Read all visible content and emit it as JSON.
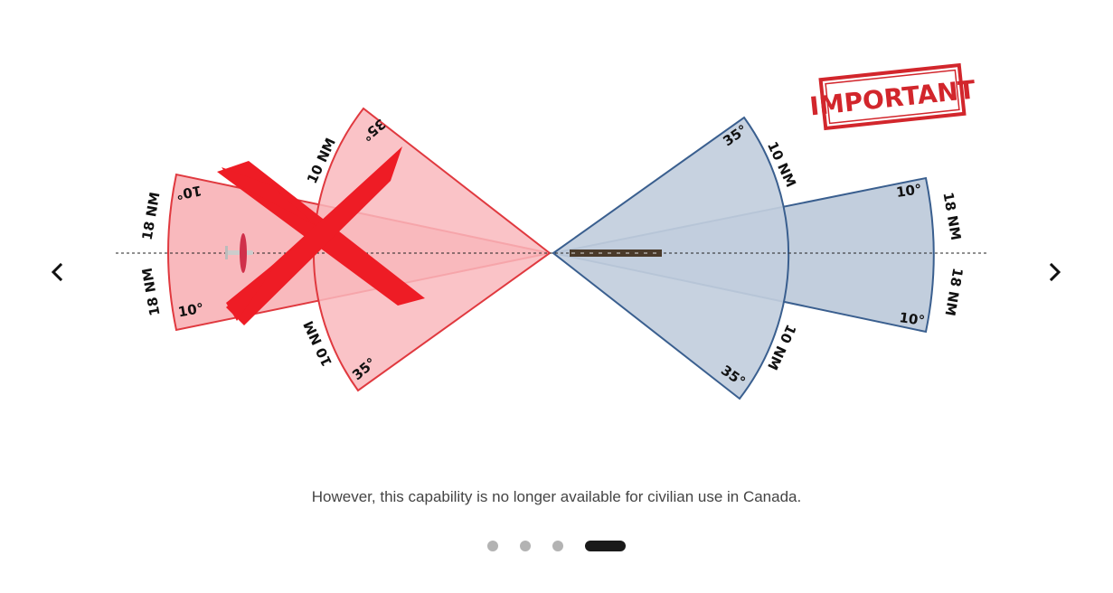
{
  "slide": {
    "stamp_text": "IMPORTANT",
    "labels": {
      "red_outer_top_range": "18 NM",
      "red_outer_bottom_range": "18 NM",
      "red_inner_top_range": "10 NM",
      "red_inner_bottom_range": "10 NM",
      "red_outer_top_angle": "10°",
      "red_outer_bottom_angle": "10°",
      "red_inner_top_angle": "35°",
      "red_inner_bottom_angle": "35°",
      "blue_inner_top_range": "10 NM",
      "blue_inner_bottom_range": "10 NM",
      "blue_outer_top_range": "18 NM",
      "blue_outer_bottom_range": "18 NM",
      "blue_inner_top_angle": "35°",
      "blue_inner_bottom_angle": "35°",
      "blue_outer_top_angle": "10°",
      "blue_outer_bottom_angle": "10°"
    },
    "colors": {
      "red_fill": "#f9b9bd",
      "red_stroke": "#e0393f",
      "blue_fill": "#c2cedd",
      "blue_stroke": "#3a5f8f",
      "cross": "#ee1c25"
    }
  },
  "caption": "However, this capability is no longer available for civilian use in Canada.",
  "pagination": {
    "count": 4,
    "active_index": 3
  }
}
